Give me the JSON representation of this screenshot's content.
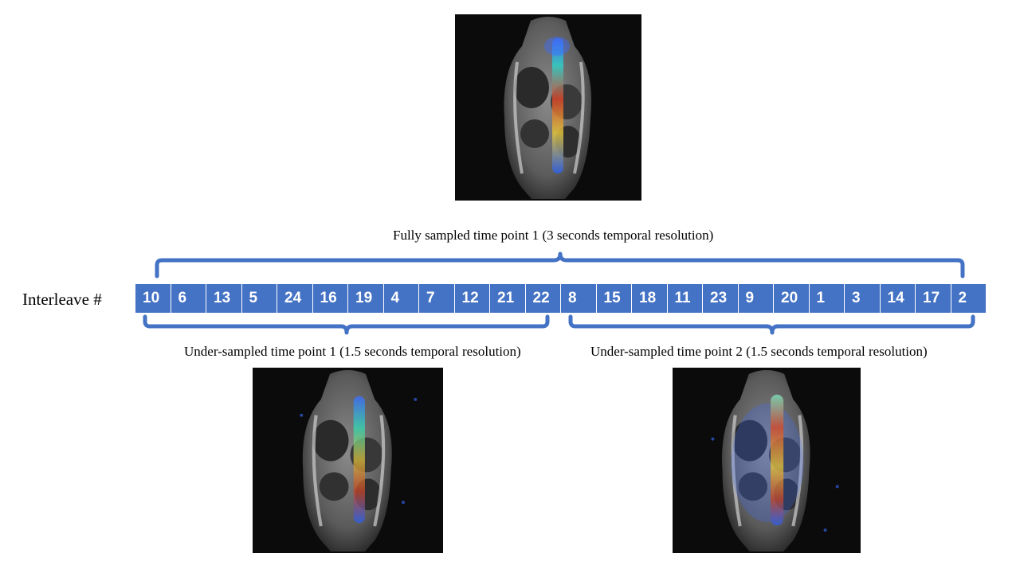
{
  "scans": {
    "full": {
      "name": "fully-sampled-scan"
    },
    "under1": {
      "name": "under-sampled-scan-1"
    },
    "under2": {
      "name": "under-sampled-scan-2"
    }
  },
  "labels": {
    "full": "Fully sampled time point 1 (3 seconds temporal resolution)",
    "under1": "Under-sampled time point 1 (1.5 seconds temporal resolution)",
    "under2": "Under-sampled time point 2 (1.5 seconds temporal resolution)",
    "interleave": "Interleave #"
  },
  "interleaves": [
    "10",
    "6",
    "13",
    "5",
    "24",
    "16",
    "19",
    "4",
    "7",
    "12",
    "21",
    "22",
    "8",
    "15",
    "18",
    "11",
    "23",
    "9",
    "20",
    "1",
    "3",
    "14",
    "17",
    "2"
  ],
  "colors": {
    "bar": "#4472c4",
    "brace": "#4472c4"
  }
}
